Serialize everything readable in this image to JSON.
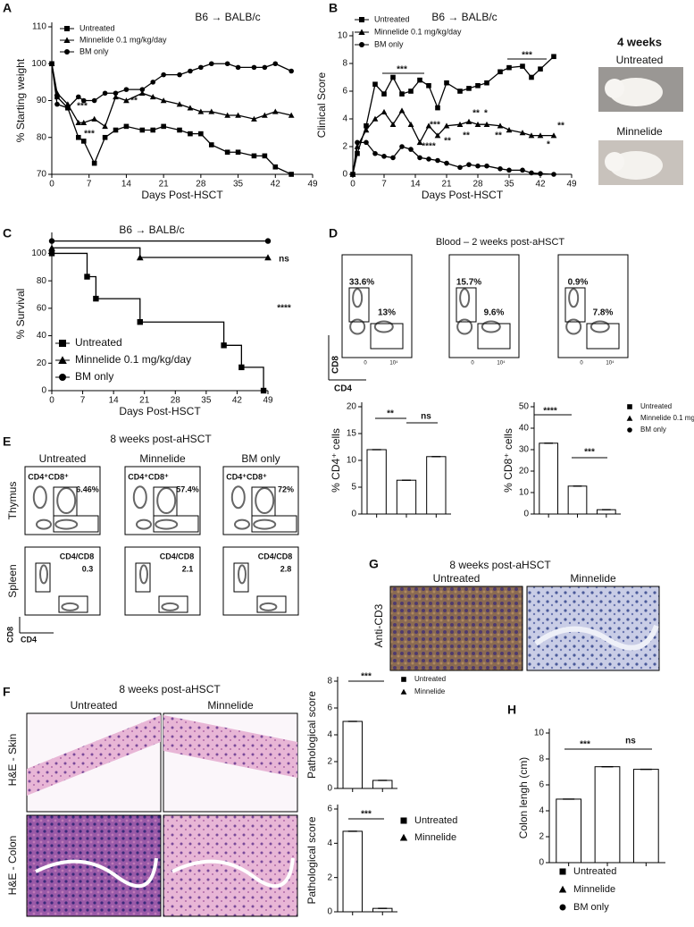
{
  "chart_data": [
    {
      "type": "line",
      "title": "B6 → BALB/c",
      "xlabel": "Days Post-HSCT",
      "ylabel": "% Starting weight",
      "x": [
        0,
        1,
        3,
        5,
        6,
        8,
        10,
        12,
        14,
        17,
        19,
        21,
        24,
        26,
        28,
        30,
        33,
        35,
        38,
        40,
        42,
        45
      ],
      "xlim": [
        0,
        49
      ],
      "xticks": [
        0,
        7,
        14,
        21,
        28,
        35,
        42,
        49
      ],
      "ylim": [
        70,
        110
      ],
      "yticks": [
        70,
        80,
        90,
        100,
        110
      ],
      "series": [
        {
          "name": "Untreated",
          "color": "#000000",
          "values": [
            100,
            91,
            88,
            80,
            79,
            73,
            80,
            82,
            83,
            82,
            82,
            83,
            82,
            81,
            81,
            78,
            76,
            76,
            75,
            75,
            72,
            70
          ]
        },
        {
          "name": "Minnelide 0.1 mg/kg/day",
          "color": "#000000",
          "values": [
            100,
            92,
            89,
            84,
            84,
            85,
            83,
            91,
            90,
            92,
            91,
            90,
            89,
            88,
            87,
            87,
            86,
            86,
            85,
            86,
            87,
            86
          ]
        },
        {
          "name": "BM only",
          "color": "#000000",
          "values": [
            100,
            89,
            88,
            91,
            90,
            90,
            92,
            92,
            93,
            93,
            95,
            97,
            97,
            98,
            99,
            100,
            100,
            99,
            99,
            99,
            100,
            98
          ]
        }
      ],
      "annotations": [
        "***",
        "***",
        "**"
      ]
    },
    {
      "type": "line",
      "title": "B6 → BALB/c",
      "xlabel": "Days Post-HSCT",
      "ylabel": "Clinical Score",
      "x": [
        0,
        1,
        3,
        5,
        7,
        9,
        11,
        13,
        15,
        17,
        19,
        21,
        24,
        26,
        28,
        30,
        33,
        35,
        38,
        40,
        42,
        45
      ],
      "xlim": [
        0,
        49
      ],
      "xticks": [
        0,
        7,
        14,
        21,
        28,
        35,
        42,
        49
      ],
      "ylim": [
        0,
        10
      ],
      "yticks": [
        0,
        2,
        4,
        6,
        8,
        10
      ],
      "series": [
        {
          "name": "Untreated",
          "color": "#000000",
          "values": [
            0,
            1.5,
            3.5,
            6.5,
            5.8,
            7,
            5.8,
            6,
            6.8,
            6.4,
            4.8,
            6.6,
            6,
            6.2,
            6.4,
            6.6,
            7.4,
            7.7,
            7.8,
            7,
            7.6,
            8.5
          ]
        },
        {
          "name": "Minnelide 0.1 mg/kg/day",
          "color": "#000000",
          "values": [
            0,
            2,
            3.2,
            4,
            4.5,
            3.6,
            4.6,
            3.6,
            2.3,
            3.5,
            2.8,
            3.5,
            3.6,
            3.8,
            3.6,
            3.6,
            3.5,
            3.2,
            3,
            2.8,
            2.8,
            2.8
          ]
        },
        {
          "name": "BM only",
          "color": "#000000",
          "values": [
            0,
            2.3,
            2.3,
            1.5,
            1.3,
            1.2,
            2,
            1.8,
            1.2,
            1.1,
            1,
            0.8,
            0.5,
            0.7,
            0.6,
            0.6,
            0.4,
            0.3,
            0.3,
            0.1,
            0.05,
            0
          ]
        }
      ],
      "annotations": [
        "***",
        "***",
        "***",
        "****",
        "**",
        "**",
        "**",
        "*",
        "**",
        "**",
        "*"
      ]
    },
    {
      "type": "line",
      "step": true,
      "title": "B6 → BALB/c",
      "xlabel": "Days Post-HSCT",
      "ylabel": "% Survival",
      "xlim": [
        0,
        49
      ],
      "xticks": [
        0,
        7,
        14,
        21,
        28,
        35,
        42,
        49
      ],
      "ylim": [
        0,
        112
      ],
      "yticks": [
        0,
        20,
        40,
        60,
        80,
        100
      ],
      "series": [
        {
          "name": "Untreated",
          "color": "#000000",
          "x": [
            0,
            8,
            10,
            20,
            39,
            43,
            48
          ],
          "values": [
            100,
            83,
            67,
            50,
            33,
            17,
            0
          ]
        },
        {
          "name": "Minnelide 0.1 mg/kg/day",
          "color": "#000000",
          "x": [
            0,
            20,
            49
          ],
          "values": [
            104,
            97,
            97
          ]
        },
        {
          "name": "BM only",
          "color": "#000000",
          "x": [
            0,
            49
          ],
          "values": [
            109,
            109
          ]
        }
      ],
      "annotations": [
        "ns",
        "****"
      ]
    },
    {
      "type": "bar",
      "ylabel": "% CD4⁺ cells",
      "values": [
        12,
        6.3,
        10.7
      ],
      "color": "#ffffff",
      "ylim": [
        0,
        20
      ],
      "yticks": [
        0,
        5,
        10,
        15,
        20
      ],
      "annotations": [
        "**",
        "ns"
      ]
    },
    {
      "type": "bar",
      "ylabel": "% CD8⁺ cells",
      "categories": [
        "Untreated",
        "Minnelide 0.1 mg/kg/day",
        "BM only"
      ],
      "values": [
        33,
        13,
        2
      ],
      "color": "#ffffff",
      "ylim": [
        0,
        50
      ],
      "yticks": [
        0,
        10,
        20,
        30,
        40,
        50
      ],
      "annotations": [
        "****",
        "***"
      ]
    },
    {
      "type": "bar",
      "ylabel": "Pathological score",
      "categories": [
        "Untreated",
        "Minnelide"
      ],
      "values": [
        5,
        0.6
      ],
      "color": "#ffffff",
      "ylim": [
        0,
        8
      ],
      "yticks": [
        0,
        2,
        4,
        6,
        8
      ],
      "annotations": [
        "***"
      ]
    },
    {
      "type": "bar",
      "ylabel": "Pathological score",
      "categories": [
        "Untreated",
        "Minnelide"
      ],
      "values": [
        4.7,
        0.2
      ],
      "color": "#ffffff",
      "ylim": [
        0,
        6
      ],
      "yticks": [
        0,
        2,
        4,
        6
      ],
      "annotations": [
        "***"
      ]
    },
    {
      "type": "bar",
      "ylabel": "Colon lengh (cm)",
      "categories": [
        "Untreated",
        "Minnelide",
        "BM only"
      ],
      "values": [
        4.9,
        7.4,
        7.2
      ],
      "color": "#ffffff",
      "ylim": [
        0,
        10
      ],
      "yticks": [
        0,
        2,
        4,
        6,
        8,
        10
      ],
      "annotations": [
        "***",
        "ns"
      ]
    }
  ],
  "figure": {
    "letters": [
      "A",
      "B",
      "C",
      "D",
      "E",
      "F",
      "G",
      "H"
    ],
    "photos": {
      "title": "4 weeks",
      "groups": [
        "Untreated",
        "Minnelide"
      ]
    },
    "blood": {
      "title": "Blood – 2 weeks post-aHSCT",
      "groups": [
        "Untreated",
        "Minnelide",
        "BM only"
      ],
      "gates": [
        [
          "33.6%",
          "13%"
        ],
        [
          "15.7%",
          "9.6%"
        ],
        [
          "0.9%",
          "7.8%"
        ]
      ],
      "yaxis": "CD8",
      "xaxis": "CD4",
      "xticklabels": [
        "0",
        "10⁴"
      ]
    },
    "organs": {
      "title": "8 weeks post-aHSCT",
      "groups": [
        "Untreated",
        "Minnelide",
        "BM only"
      ],
      "rows": [
        "Thymus",
        "Spleen"
      ],
      "thymus_gate": "CD4⁺CD8⁺",
      "thymus": [
        "6.46%",
        "57.4%",
        "72%"
      ],
      "spleen_gate": "CD4/CD8",
      "spleen": [
        "0.3",
        "2.1",
        "2.8"
      ],
      "yaxis": "CD8",
      "xaxis": "CD4"
    },
    "cd3": {
      "title": "8 weeks post-aHSCT",
      "groups": [
        "Untreated",
        "Minnelide"
      ],
      "stain": "Anti-CD3"
    },
    "he": {
      "title": "8 weeks post-aHSCT",
      "groups": [
        "Untreated",
        "Minnelide"
      ],
      "rows": [
        "H&E - Skin",
        "H&E - Colon"
      ]
    }
  }
}
